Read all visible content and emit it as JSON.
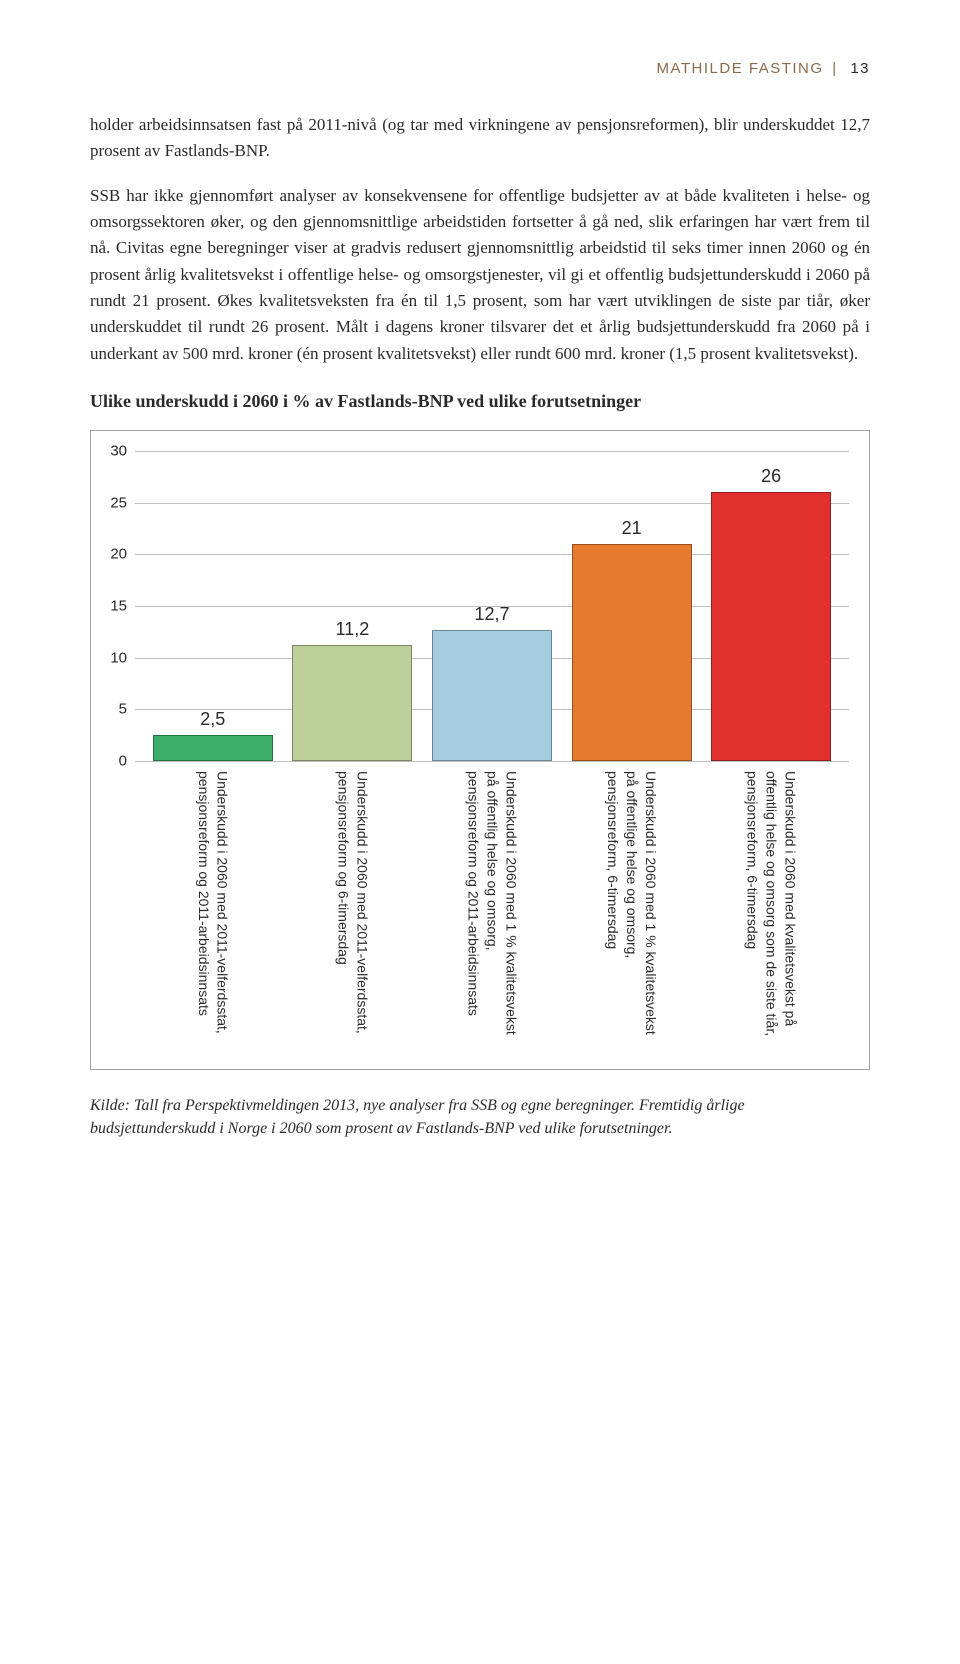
{
  "header": {
    "author": "MATHILDE FASTING",
    "page": "13"
  },
  "paragraph1": "holder arbeidsinnsatsen fast på 2011-nivå (og tar med virkningene av pensjonsreformen), blir underskuddet 12,7 prosent av Fastlands-BNP.",
  "paragraph2": "SSB har ikke gjennomført analyser av konsekvensene for offentlige budsjetter av at både kvaliteten i helse- og omsorgssektoren øker, og den gjennomsnittlige arbeidstiden fortsetter å gå ned, slik erfaringen har vært frem til nå. Civitas egne beregninger viser at gradvis redusert gjennomsnittlig arbeidstid til seks timer innen 2060 og én prosent årlig kvalitetsvekst i offentlige helse- og omsorgstjenester, vil gi et offentlig budsjettunderskudd i 2060 på rundt 21 prosent. Økes kvalitetsveksten fra én til 1,5 prosent, som har vært utviklingen de siste par tiår, øker underskuddet til rundt 26 prosent. Målt i dagens kroner tilsvarer det et årlig budsjettunderskudd fra 2060 på i underkant av 500 mrd. kroner (én prosent kvalitetsvekst) eller rundt 600 mrd. kroner (1,5 prosent kvalitetsvekst).",
  "subheading": "Ulike underskudd i 2060 i % av Fastlands-BNP ved ulike forutsetninger",
  "chart": {
    "type": "bar",
    "ylim": [
      0,
      30
    ],
    "ytick_step": 5,
    "yticks": [
      0,
      5,
      10,
      15,
      20,
      25,
      30
    ],
    "grid_color": "#bfbfbf",
    "background_color": "#ffffff",
    "label_fontsize": 15,
    "value_fontsize": 18,
    "bar_width": 0.86,
    "bars": [
      {
        "value": 2.5,
        "display": "2,5",
        "color": "#3eae6a",
        "label": "Underskudd i 2060 med 2011-velferdsstat, pensjonsreform og 2011-arbeidsinnsats"
      },
      {
        "value": 11.2,
        "display": "11,2",
        "color": "#bdd09a",
        "label": "Underskudd i 2060 med 2011-velferdsstat, pensjonsreform og 6-timersdag"
      },
      {
        "value": 12.7,
        "display": "12,7",
        "color": "#a6cde0",
        "label": "Underskudd i 2060 med 1 % kvalitetsvekst på offentlig helse og omsorg, pensjonsreform og 2011-arbeidsinnsats"
      },
      {
        "value": 21,
        "display": "21",
        "color": "#e67a2f",
        "label": "Underskudd i 2060 med 1 % kvalitetsvekst på offentlige helse og omsorg, pensjonsreform, 6-timersdag"
      },
      {
        "value": 26,
        "display": "26",
        "color": "#e2302e",
        "label": "Underskudd i 2060 med kvalitetsvekst på offentlig helse og omsorg som de siste tiår, pensjonsreform, 6-timersdag"
      }
    ]
  },
  "caption": "Kilde: Tall fra Perspektivmeldingen 2013, nye analyser fra SSB og egne beregninger. Fremtidig årlige budsjettunderskudd i Norge i 2060 som prosent av Fastlands-BNP ved ulike forutsetninger."
}
